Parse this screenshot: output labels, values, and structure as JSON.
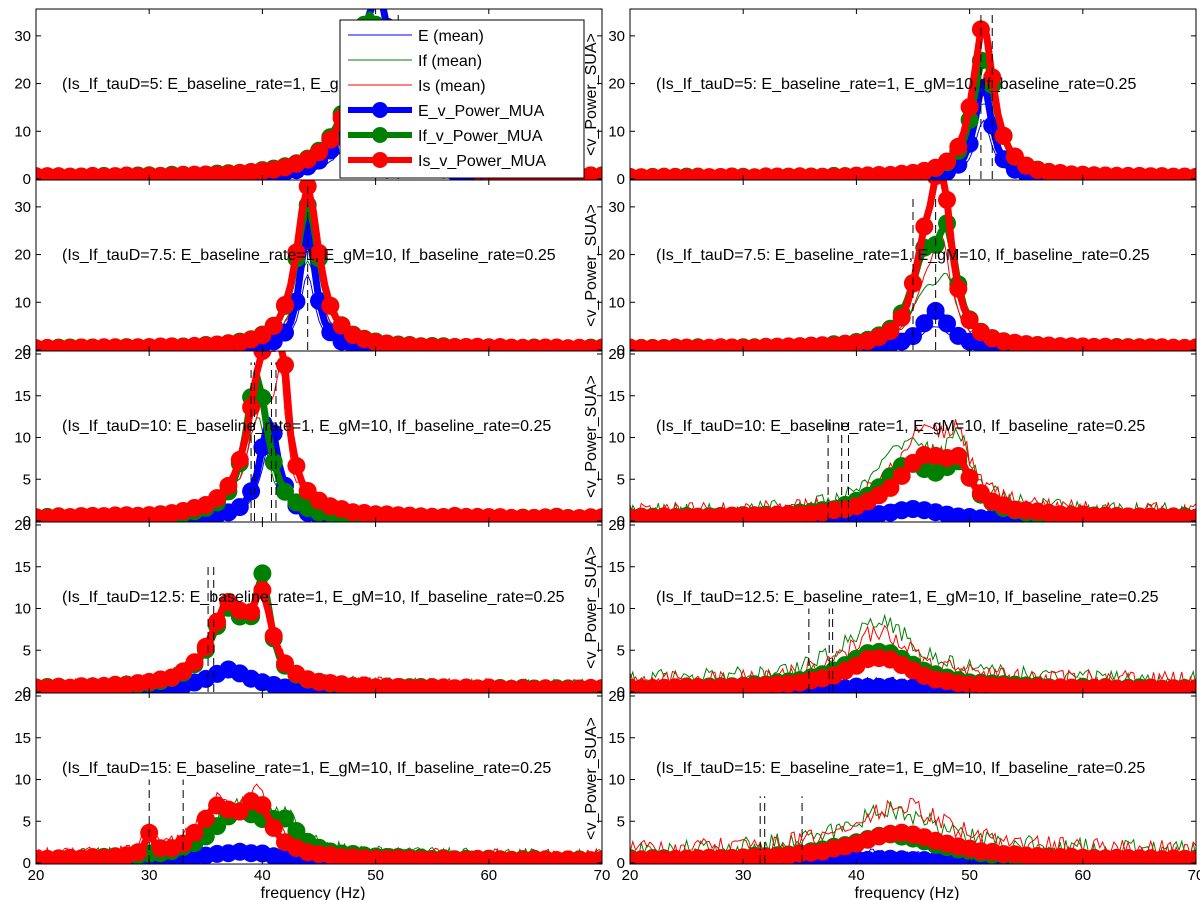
{
  "chart_data": {
    "type": "line",
    "xlabel": "frequency (Hz)",
    "ylabel_right": "<v_Power_SUA>",
    "xlim": [
      20,
      70
    ],
    "xticks": [
      20,
      30,
      40,
      50,
      60,
      70
    ],
    "grid": false,
    "legend": {
      "placement": "top-left-center",
      "entries": [
        {
          "label": "E (mean)",
          "color": "#0000ff",
          "style": "thin"
        },
        {
          "label": "If (mean)",
          "color": "#008000",
          "style": "thin"
        },
        {
          "label": "Is (mean)",
          "color": "#ff0000",
          "style": "thin"
        },
        {
          "label": "E_v_Power_MUA",
          "color": "#0000ff",
          "style": "thick-marker"
        },
        {
          "label": "If_v_Power_MUA",
          "color": "#008000",
          "style": "thick-marker"
        },
        {
          "label": "Is_v_Power_MUA",
          "color": "#ff0000",
          "style": "thick-marker"
        }
      ]
    },
    "series_colors": {
      "E": "#0000ff",
      "If": "#008000",
      "Is": "#ff0000"
    },
    "panels": [
      {
        "row": 0,
        "col": 0,
        "annotation": "(Is_If_tauD=5: E_baseline_rate=1, E_gM=10, If_baseline_rate=0.25",
        "ylim": [
          0,
          35
        ],
        "yticks": [
          0,
          10,
          20,
          30
        ],
        "dashed": [
          51,
          52
        ],
        "dash_top": 35,
        "peaks": {
          "E": [
            [
              49,
              22,
              1.5
            ],
            [
              50.5,
              30,
              1.0
            ]
          ],
          "If": [
            [
              49.5,
              34,
              2.0
            ]
          ],
          "Is": [
            [
              49.5,
              32,
              2.0
            ]
          ]
        },
        "mean_scale": 0.6
      },
      {
        "row": 0,
        "col": 1,
        "annotation": "(Is_If_tauD=5: E_baseline_rate=1, E_gM=10, If_baseline_rate=0.25",
        "ylim": [
          0,
          35
        ],
        "yticks": [
          0,
          10,
          20,
          30
        ],
        "dashed": [
          51,
          52
        ],
        "dash_top": 35,
        "peaks": {
          "E": [
            [
              51.2,
              20,
              0.9
            ]
          ],
          "If": [
            [
              51.3,
              26,
              1.2
            ]
          ],
          "Is": [
            [
              51.2,
              32,
              1.1
            ]
          ]
        },
        "mean_scale": 0.6
      },
      {
        "row": 1,
        "col": 0,
        "annotation": "(Is_If_tauD=7.5: E_baseline_rate=1, E_gM=10, If_baseline_rate=0.25",
        "ylim": [
          0,
          35
        ],
        "yticks": [
          0,
          10,
          20,
          30
        ],
        "dashed": [
          44
        ],
        "dash_top": 35,
        "peaks": {
          "E": [
            [
              44,
              26,
              0.8
            ]
          ],
          "If": [
            [
              44,
              30,
              1.3
            ]
          ],
          "Is": [
            [
              44,
              34,
              1.2
            ]
          ]
        },
        "mean_scale": 0.6
      },
      {
        "row": 1,
        "col": 1,
        "annotation": "(Is_If_tauD=7.5: E_baseline_rate=1, E_gM=10, If_baseline_rate=0.25",
        "ylim": [
          0,
          35
        ],
        "yticks": [
          0,
          10,
          20,
          30
        ],
        "dashed": [
          45,
          47
        ],
        "dash_top": 32,
        "peaks": {
          "E": [
            [
              47,
              8,
              1.5
            ]
          ],
          "If": [
            [
              46,
              17,
              1.5
            ],
            [
              48,
              20,
              1.0
            ]
          ],
          "Is": [
            [
              46,
              15,
              1.2
            ],
            [
              47.5,
              34,
              1.0
            ]
          ]
        },
        "mean_scale": 0.6
      },
      {
        "row": 2,
        "col": 0,
        "annotation": "(Is_If_tauD=10: E_baseline_rate=1, E_gM=10, If_baseline_rate=0.25",
        "ylim": [
          0,
          20
        ],
        "yticks": [
          0,
          5,
          10,
          15,
          20
        ],
        "dashed": [
          39,
          39.3,
          40.8,
          41.2
        ],
        "dash_top": 19,
        "peaks": {
          "E": [
            [
              40.6,
              12,
              1.0
            ]
          ],
          "If": [
            [
              39.5,
              17,
              1.2
            ]
          ],
          "Is": [
            [
              40,
              18,
              1.5
            ],
            [
              41.6,
              17,
              0.6
            ]
          ]
        },
        "mean_scale": 0.7
      },
      {
        "row": 2,
        "col": 1,
        "annotation": "(Is_If_tauD=10: E_baseline_rate=1, E_gM=10, If_baseline_rate=0.25",
        "ylim": [
          0,
          20
        ],
        "yticks": [
          0,
          5,
          10,
          15,
          20
        ],
        "dashed": [
          37.5,
          38.7,
          39.3
        ],
        "dash_top": 12,
        "peaks": {
          "E": [
            [
              45,
              1.3,
              3.0
            ]
          ],
          "If": [
            [
              44.5,
              6,
              3.0
            ],
            [
              49,
              5,
              1.5
            ]
          ],
          "Is": [
            [
              46,
              7,
              3.0
            ],
            [
              49,
              4,
              1.2
            ]
          ]
        },
        "mean_scale": 1.35
      },
      {
        "row": 3,
        "col": 0,
        "annotation": "(Is_If_tauD=12.5: E_baseline_rate=1, E_gM=10, If_baseline_rate=0.25",
        "ylim": [
          0,
          20
        ],
        "yticks": [
          0,
          5,
          10,
          15,
          20
        ],
        "dashed": [
          35.2,
          35.7
        ],
        "dash_top": 15,
        "peaks": {
          "E": [
            [
              37,
              2.5,
              2.5
            ]
          ],
          "If": [
            [
              37,
              9,
              2.0
            ],
            [
              40,
              11,
              0.8
            ]
          ],
          "Is": [
            [
              37,
              9.5,
              2.0
            ],
            [
              40,
              9,
              1.0
            ]
          ]
        },
        "mean_scale": 1.0
      },
      {
        "row": 3,
        "col": 1,
        "annotation": "(Is_If_tauD=12.5: E_baseline_rate=1, E_gM=10, If_baseline_rate=0.25",
        "ylim": [
          0,
          20
        ],
        "yticks": [
          0,
          5,
          10,
          15,
          20
        ],
        "dashed": [
          35.8,
          37.6,
          37.9
        ],
        "dash_top": 10,
        "peaks": {
          "E": [
            [
              42,
              0.6,
              4.0
            ]
          ],
          "If": [
            [
              42,
              4.5,
              4.0
            ]
          ],
          "Is": [
            [
              42,
              3.8,
              3.5
            ]
          ]
        },
        "mean_scale": 1.6
      },
      {
        "row": 4,
        "col": 0,
        "annotation": "(Is_If_tauD=15: E_baseline_rate=1, E_gM=10, If_baseline_rate=0.25",
        "ylim": [
          0,
          20
        ],
        "yticks": [
          0,
          5,
          10,
          15,
          20
        ],
        "dashed": [
          30,
          33
        ],
        "dash_top": 10,
        "peaks": {
          "E": [
            [
              38,
              1.2,
              4.0
            ]
          ],
          "If": [
            [
              38,
              5.5,
              3.0
            ],
            [
              42,
              3,
              1.5
            ]
          ],
          "Is": [
            [
              36,
              5.5,
              2.0
            ],
            [
              39.5,
              6,
              1.5
            ],
            [
              30,
              2.5,
              0.5
            ]
          ]
        },
        "mean_scale": 1.1
      },
      {
        "row": 4,
        "col": 1,
        "annotation": "(Is_If_tauD=15: E_baseline_rate=1, E_gM=10, If_baseline_rate=0.25",
        "ylim": [
          0,
          20
        ],
        "yticks": [
          0,
          5,
          10,
          15,
          20
        ],
        "dashed": [
          31.5,
          31.9,
          35.2
        ],
        "dash_top": 8,
        "peaks": {
          "E": [
            [
              42,
              0.4,
              4.0
            ]
          ],
          "If": [
            [
              43,
              3.0,
              5.0
            ]
          ],
          "Is": [
            [
              44,
              3.2,
              5.0
            ]
          ]
        },
        "mean_scale": 1.7
      }
    ]
  }
}
